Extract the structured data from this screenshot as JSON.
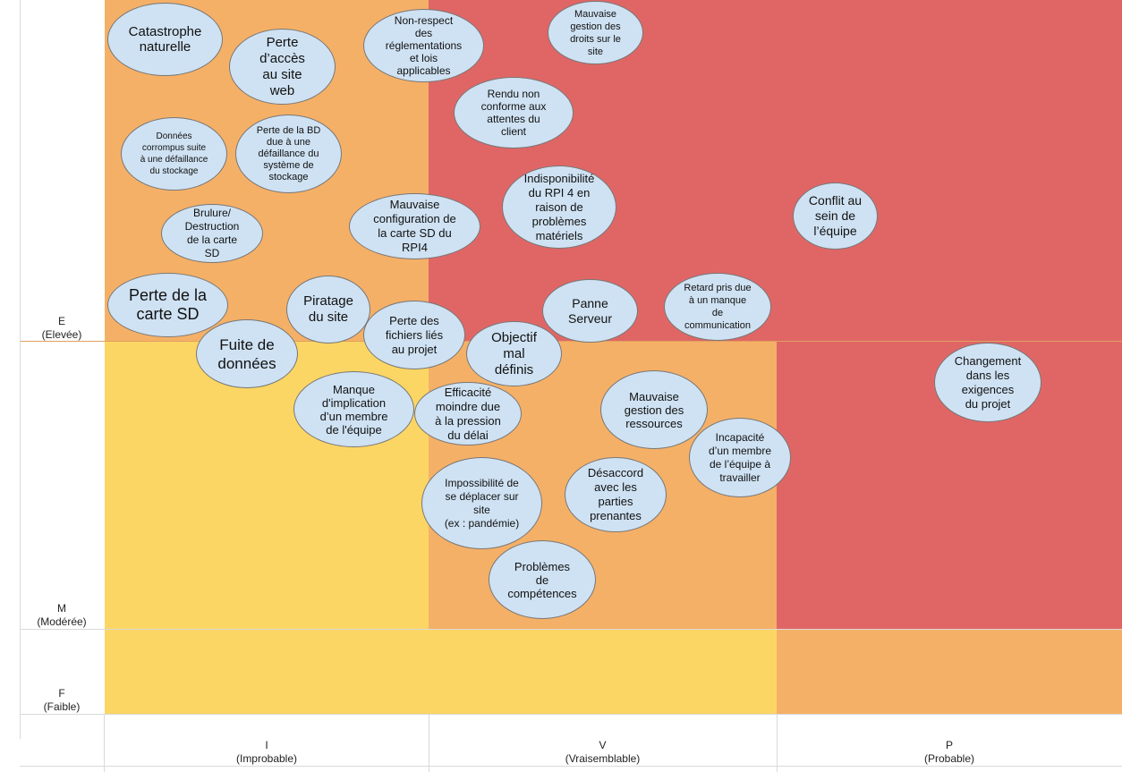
{
  "colors": {
    "low": "#fcd664",
    "medium": "#f5b067",
    "high": "#e06666",
    "bubble_fill": "#cfe2f3",
    "bubble_border": "#777777",
    "grid": "#d9d9d9"
  },
  "y_axis": [
    {
      "code": "E",
      "label": "(Elevée)"
    },
    {
      "code": "M",
      "label": "(Modérée)"
    },
    {
      "code": "F",
      "label": "(Faible)"
    }
  ],
  "x_axis": [
    {
      "code": "I",
      "label": "(Improbable)"
    },
    {
      "code": "V",
      "label": "(Vraisemblable)"
    },
    {
      "code": "P",
      "label": "(Probable)"
    }
  ],
  "risks": [
    {
      "id": "catastrophe",
      "text": "Catastrophe\nnaturelle"
    },
    {
      "id": "perte-acces-web",
      "text": "Perte\nd’accès\nau site\nweb"
    },
    {
      "id": "non-respect",
      "text": "Non-respect\ndes\nréglementations\net lois\napplicables"
    },
    {
      "id": "gestion-droits",
      "text": "Mauvaise\ngestion des\ndroits sur le\nsite"
    },
    {
      "id": "rendu-non-conforme",
      "text": "Rendu non\nconforme aux\nattentes du\nclient"
    },
    {
      "id": "donnees-corrompues",
      "text": "Données\ncorrompus suite\nà une défaillance\ndu stockage"
    },
    {
      "id": "perte-bd",
      "text": "Perte de la BD\ndue à une\ndéfaillance du\nsystème de\nstockage"
    },
    {
      "id": "indispo-rpi",
      "text": "Indisponibilité\ndu RPI 4 en\nraison de\nproblèmes\nmatériels"
    },
    {
      "id": "brulure-sd",
      "text": "Brulure/\nDestruction\nde la carte\nSD"
    },
    {
      "id": "config-sd",
      "text": "Mauvaise\nconfiguration de\nla carte SD du\nRPI4"
    },
    {
      "id": "conflit",
      "text": "Conflit au\nsein de\nl’équipe"
    },
    {
      "id": "perte-sd",
      "text": "Perte de la\ncarte SD"
    },
    {
      "id": "piratage",
      "text": "Piratage\ndu site"
    },
    {
      "id": "panne-serveur",
      "text": "Panne\nServeur"
    },
    {
      "id": "retard-communication",
      "text": "Retard pris due\nà un manque\nde\ncommunication"
    },
    {
      "id": "perte-fichiers",
      "text": "Perte des\nfichiers liés\nau projet"
    },
    {
      "id": "fuite-donnees",
      "text": "Fuite de\ndonnées"
    },
    {
      "id": "objectif-mal-definis",
      "text": "Objectif\nmal\ndéfinis"
    },
    {
      "id": "changement-exigences",
      "text": "Changement\ndans les\nexigences\ndu projet"
    },
    {
      "id": "manque-implication",
      "text": "Manque\nd'implication\nd’un membre\nde l'équipe"
    },
    {
      "id": "efficacite-moindre",
      "text": "Efficacité\nmoindre due\nà la pression\ndu délai"
    },
    {
      "id": "gestion-ressources",
      "text": "Mauvaise\ngestion des\nressources"
    },
    {
      "id": "incapacite-membre",
      "text": "Incapacité\nd’un membre\nde l’équipe à\ntravailler"
    },
    {
      "id": "impossibilite-deplacer",
      "text": "Impossibilité de\nse déplacer sur\nsite\n(ex : pandémie)"
    },
    {
      "id": "desaccord",
      "text": "Désaccord\navec les\nparties\nprenantes"
    },
    {
      "id": "problemes-competences",
      "text": "Problèmes\nde\ncompétences"
    }
  ]
}
